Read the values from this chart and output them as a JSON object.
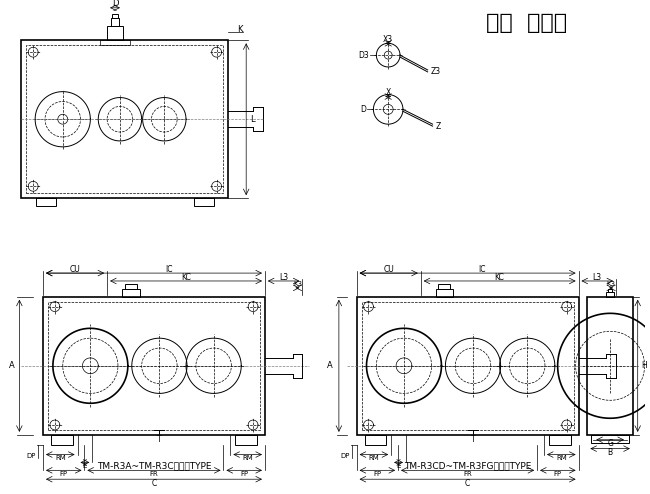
{
  "title": "三段  直交轴",
  "title_fontsize": 18,
  "bg_color": "#ffffff",
  "line_color": "#000000",
  "label1": "TM-R3A~TM-R3C适用此TYPE",
  "label2": "TM-R3CD~TM-R3FG适用此TYPE"
}
